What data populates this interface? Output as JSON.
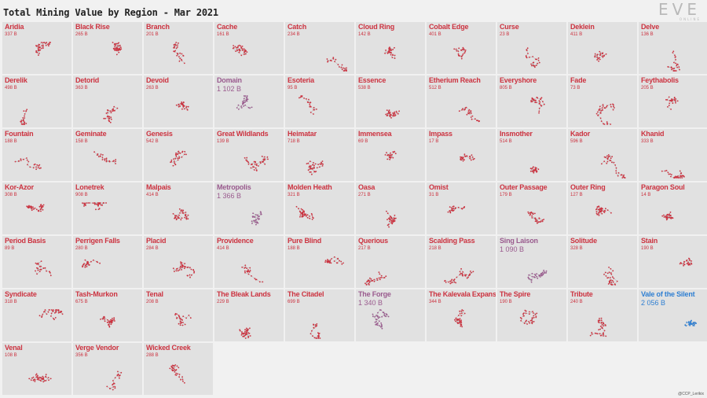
{
  "title": "Total Mining Value by Region - Mar 2021",
  "logo": {
    "mark": "EVE",
    "sub": "ONLINE"
  },
  "credit": "@CCP_Lerikix",
  "colors": {
    "low": "#cc3340",
    "mid": "#9a5b8e",
    "high": "#2f7fd2",
    "dots": "#b83a52",
    "tile": "#e1e1e1"
  },
  "chart_data": {
    "type": "small-multiples",
    "title": "Total Mining Value by Region - Mar 2021",
    "unit": "B",
    "regions": [
      {
        "name": "Aridia",
        "value": "337 B",
        "v": 337
      },
      {
        "name": "Black Rise",
        "value": "265 B",
        "v": 265
      },
      {
        "name": "Branch",
        "value": "201 B",
        "v": 201
      },
      {
        "name": "Cache",
        "value": "161 B",
        "v": 161
      },
      {
        "name": "Catch",
        "value": "234 B",
        "v": 234
      },
      {
        "name": "Cloud Ring",
        "value": "142 B",
        "v": 142
      },
      {
        "name": "Cobalt Edge",
        "value": "401 B",
        "v": 401
      },
      {
        "name": "Curse",
        "value": "23 B",
        "v": 23
      },
      {
        "name": "Deklein",
        "value": "411 B",
        "v": 411
      },
      {
        "name": "Delve",
        "value": "136 B",
        "v": 136
      },
      {
        "name": "Derelik",
        "value": "498 B",
        "v": 498
      },
      {
        "name": "Detorid",
        "value": "363 B",
        "v": 363
      },
      {
        "name": "Devoid",
        "value": "263 B",
        "v": 263
      },
      {
        "name": "Domain",
        "value": "1 102 B",
        "v": 1102
      },
      {
        "name": "Esoteria",
        "value": "95 B",
        "v": 95
      },
      {
        "name": "Essence",
        "value": "538 B",
        "v": 538
      },
      {
        "name": "Etherium Reach",
        "value": "512 B",
        "v": 512
      },
      {
        "name": "Everyshore",
        "value": "805 B",
        "v": 805
      },
      {
        "name": "Fade",
        "value": "73 B",
        "v": 73
      },
      {
        "name": "Feythabolis",
        "value": "205 B",
        "v": 205
      },
      {
        "name": "Fountain",
        "value": "188 B",
        "v": 188
      },
      {
        "name": "Geminate",
        "value": "158 B",
        "v": 158
      },
      {
        "name": "Genesis",
        "value": "542 B",
        "v": 542
      },
      {
        "name": "Great Wildlands",
        "value": "139 B",
        "v": 139
      },
      {
        "name": "Heimatar",
        "value": "718 B",
        "v": 718
      },
      {
        "name": "Immensea",
        "value": "69 B",
        "v": 69
      },
      {
        "name": "Impass",
        "value": "17 B",
        "v": 17
      },
      {
        "name": "Insmother",
        "value": "514 B",
        "v": 514
      },
      {
        "name": "Kador",
        "value": "596 B",
        "v": 596
      },
      {
        "name": "Khanid",
        "value": "333 B",
        "v": 333
      },
      {
        "name": "Kor-Azor",
        "value": "308 B",
        "v": 308
      },
      {
        "name": "Lonetrek",
        "value": "908 B",
        "v": 908
      },
      {
        "name": "Malpais",
        "value": "414 B",
        "v": 414
      },
      {
        "name": "Metropolis",
        "value": "1 366 B",
        "v": 1366
      },
      {
        "name": "Molden Heath",
        "value": "321 B",
        "v": 321
      },
      {
        "name": "Oasa",
        "value": "271 B",
        "v": 271
      },
      {
        "name": "Omist",
        "value": "31 B",
        "v": 31
      },
      {
        "name": "Outer Passage",
        "value": "179 B",
        "v": 179
      },
      {
        "name": "Outer Ring",
        "value": "127 B",
        "v": 127
      },
      {
        "name": "Paragon Soul",
        "value": "14 B",
        "v": 14
      },
      {
        "name": "Period Basis",
        "value": "89 B",
        "v": 89
      },
      {
        "name": "Perrigen Falls",
        "value": "280 B",
        "v": 280
      },
      {
        "name": "Placid",
        "value": "284 B",
        "v": 284
      },
      {
        "name": "Providence",
        "value": "414 B",
        "v": 414
      },
      {
        "name": "Pure Blind",
        "value": "188 B",
        "v": 188
      },
      {
        "name": "Querious",
        "value": "217 B",
        "v": 217
      },
      {
        "name": "Scalding Pass",
        "value": "218 B",
        "v": 218
      },
      {
        "name": "Sing Laison",
        "value": "1 090 B",
        "v": 1090
      },
      {
        "name": "Solitude",
        "value": "328 B",
        "v": 328
      },
      {
        "name": "Stain",
        "value": "190 B",
        "v": 190
      },
      {
        "name": "Syndicate",
        "value": "318 B",
        "v": 318
      },
      {
        "name": "Tash-Murkon",
        "value": "675 B",
        "v": 675
      },
      {
        "name": "Tenal",
        "value": "208 B",
        "v": 208
      },
      {
        "name": "The Bleak Lands",
        "value": "229 B",
        "v": 229
      },
      {
        "name": "The Citadel",
        "value": "699 B",
        "v": 699
      },
      {
        "name": "The Forge",
        "value": "1 340 B",
        "v": 1340
      },
      {
        "name": "The Kalevala Expanse",
        "value": "344 B",
        "v": 344
      },
      {
        "name": "The Spire",
        "value": "190 B",
        "v": 190
      },
      {
        "name": "Tribute",
        "value": "240 B",
        "v": 240
      },
      {
        "name": "Vale of the Silent",
        "value": "2 056 B",
        "v": 2056
      },
      {
        "name": "Venal",
        "value": "108 B",
        "v": 108
      },
      {
        "name": "Verge Vendor",
        "value": "356 B",
        "v": 356
      },
      {
        "name": "Wicked Creek",
        "value": "288 B",
        "v": 288
      }
    ]
  }
}
